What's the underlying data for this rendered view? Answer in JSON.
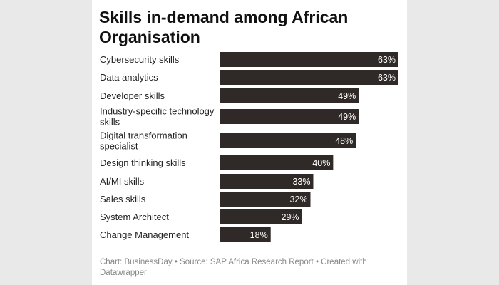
{
  "chart_data": {
    "type": "bar",
    "orientation": "horizontal",
    "title": "Skills in-demand among African Organisation",
    "categories": [
      [
        "Cybersecurity skills"
      ],
      [
        "Data analytics"
      ],
      [
        "Developer skills"
      ],
      [
        "Industry-specific technology",
        "skills"
      ],
      [
        "Digital transformation",
        "specialist"
      ],
      [
        "Design thinking skills"
      ],
      [
        "AI/MI skills"
      ],
      [
        "Sales skills"
      ],
      [
        "System Architect"
      ],
      [
        "Change Management"
      ]
    ],
    "values": [
      63,
      63,
      49,
      49,
      48,
      40,
      33,
      32,
      29,
      18
    ],
    "value_labels": [
      "63%",
      "63%",
      "49%",
      "49%",
      "48%",
      "40%",
      "33%",
      "32%",
      "29%",
      "18%"
    ],
    "xlim": [
      0,
      63
    ],
    "bar_color": "#2f2a27",
    "label_color": "#ffffff",
    "source": "Chart: BusinessDay • Source: SAP Africa Research Report • Created with Datawrapper"
  }
}
